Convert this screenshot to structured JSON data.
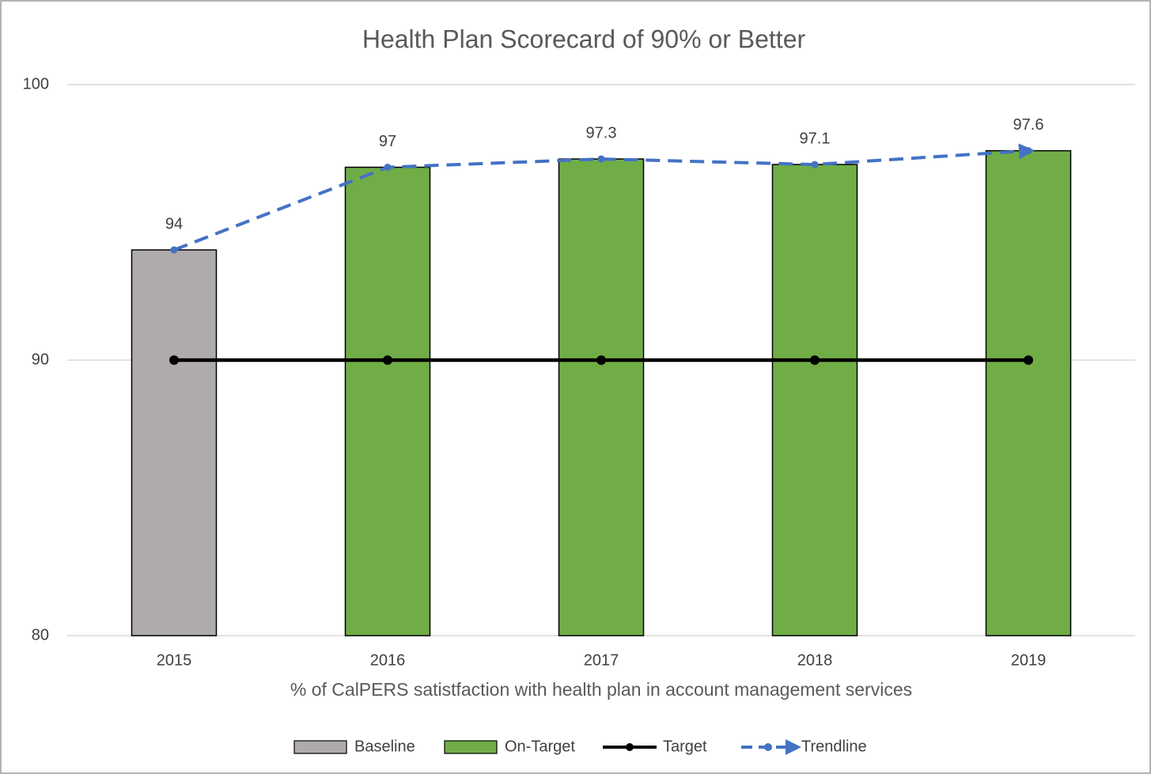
{
  "chart_data": {
    "type": "bar",
    "title": "Health Plan Scorecard of 90% or Better",
    "x_label": "% of CalPERS satistfaction with health plan in account management services",
    "categories": [
      "2015",
      "2016",
      "2017",
      "2018",
      "2019"
    ],
    "series": [
      {
        "name": "Baseline",
        "color": "#afabab",
        "values": [
          94,
          null,
          null,
          null,
          null
        ]
      },
      {
        "name": "On-Target",
        "color": "#70ad47",
        "values": [
          null,
          97,
          97.3,
          97.1,
          97.6
        ]
      },
      {
        "name": "Target",
        "type": "line",
        "color": "#000000",
        "values": [
          90,
          90,
          90,
          90,
          90
        ]
      },
      {
        "name": "Trendline",
        "type": "line",
        "dashed": true,
        "color": "#4472c4",
        "values": [
          94,
          97,
          97.3,
          97.1,
          97.6
        ]
      }
    ],
    "ylim": [
      80,
      100
    ],
    "yticks": [
      80,
      90,
      100
    ],
    "grid": true,
    "legend": "bottom"
  }
}
